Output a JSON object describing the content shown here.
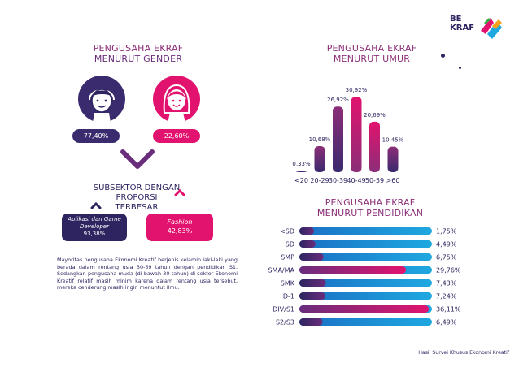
{
  "logo": {
    "line1": "BE",
    "line2": "KRAF"
  },
  "gender": {
    "title_line1": "PENGUSAHA EKRAF",
    "title_line2": "MENURUT GENDER",
    "male_pct": "77,40%",
    "female_pct": "22,60%"
  },
  "subsektor": {
    "title_line1": "SUBSEKTOR DENGAN PROPORSI",
    "title_line2": "TERBESAR",
    "left_line1": "Aplikasi dan Game",
    "left_line2": "Developer",
    "left_pct": "93,38%",
    "right_line1": "Fashion",
    "right_pct": "42,83%"
  },
  "paragraph": "Mayoritas pengusaha Ekonomi Kreatif berjenis kelamin laki-laki yang berada dalam rentang usia 30-59 tahun dengan pendidikan S1. Sedangkan pengusaha muda (di bawah 30 tahun) di sektor Ekonomi Kreatif relatif masih minim karena dalam rentang usia tersebut, mereka cenderung masih ingin menuntut ilmu.",
  "footer": "Hasil Survei Khusus Ekonomi Kreatif",
  "colors": {
    "navy": "#2d2460",
    "magenta": "#e2136e",
    "purple": "#6a2d7c",
    "blue": "#1fa8e0"
  },
  "chart_data": [
    {
      "type": "bar",
      "title": "PENGUSAHA EKRAF MENURUT UMUR",
      "title_line1": "PENGUSAHA EKRAF",
      "title_line2": "MENURUT UMUR",
      "categories": [
        "<20",
        "20-29",
        "30-39",
        "40-49",
        "50-59",
        ">60"
      ],
      "values": [
        0.33,
        10.68,
        26.92,
        30.92,
        20.69,
        10.45
      ],
      "labels": [
        "0,33%",
        "10,68%",
        "26,92%",
        "30,92%",
        "20,69%",
        "10,45%"
      ],
      "ylim": [
        0,
        31
      ]
    },
    {
      "type": "bar",
      "orientation": "horizontal",
      "title": "PENGUSAHA EKRAF MENURUT PENDIDIKAN",
      "title_line1": "PENGUSAHA EKRAF",
      "title_line2": "MENURUT PENDIDIKAN",
      "categories": [
        "<SD",
        "SD",
        "SMP",
        "SMA/MA",
        "SMK",
        "D-1",
        "DIV/S1",
        "S2/S3"
      ],
      "values": [
        1.75,
        4.49,
        6.75,
        29.76,
        7.43,
        7.24,
        36.11,
        6.49
      ],
      "labels": [
        "1,75%",
        "4,49%",
        "6,75%",
        "29,76%",
        "7,43%",
        "7,24%",
        "36,11%",
        "6,49%"
      ],
      "xlim": [
        0,
        37
      ]
    }
  ]
}
